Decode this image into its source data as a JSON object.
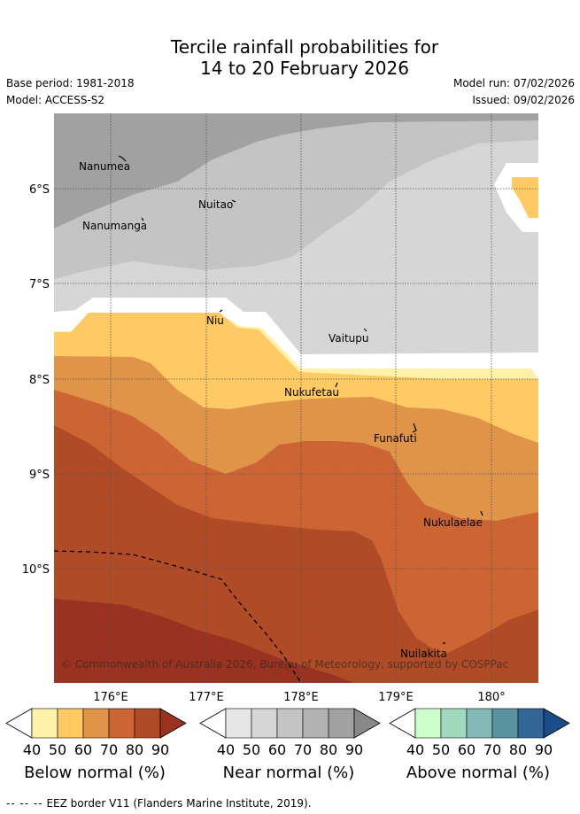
{
  "title_line1": "Tercile rainfall probabilities for",
  "title_line2": "14 to 20 February 2026",
  "base_period": "Base period: 1981-2018",
  "model": "Model: ACCESS-S2",
  "model_run": "Model run: 07/02/2026",
  "issued": "Issued: 09/02/2026",
  "copyright": "© Commonwealth of Australia 2026, Bureau of Meteorology, supported by COSPPac",
  "lat_labels": [
    "6°S",
    "7°S",
    "8°S",
    "9°S",
    "10°S"
  ],
  "lon_labels": [
    "176°E",
    "177°E",
    "178°E",
    "179°E",
    "180°"
  ],
  "places": [
    "Nanumea",
    "Nuitao",
    "Nanumanga",
    "Niu",
    "Vaitupu",
    "Nukufetau",
    "Funafuti",
    "Nukulaelae",
    "Nuilakita"
  ],
  "colorbars": [
    {
      "label": "Below normal (%)",
      "ticks": [
        "40",
        "50",
        "60",
        "70",
        "80",
        "90"
      ],
      "colors": [
        "#fff2a8",
        "#ffca63",
        "#e0944a",
        "#cc6533",
        "#b04b27",
        "#993221"
      ]
    },
    {
      "label": "Near normal (%)",
      "ticks": [
        "40",
        "50",
        "60",
        "70",
        "80",
        "90"
      ],
      "colors": [
        "#e6e6e6",
        "#d6d6d6",
        "#c4c4c4",
        "#b3b3b3",
        "#a1a1a1",
        "#888888"
      ]
    },
    {
      "label": "Above normal (%)",
      "ticks": [
        "40",
        "50",
        "60",
        "70",
        "80",
        "90"
      ],
      "colors": [
        "#ccffcc",
        "#a1d9bf",
        "#82b8b5",
        "#5a939f",
        "#346699",
        "#1a4d87"
      ]
    }
  ],
  "eez_legend": "EEZ border V11 (Flanders Marine Institute, 2019)."
}
